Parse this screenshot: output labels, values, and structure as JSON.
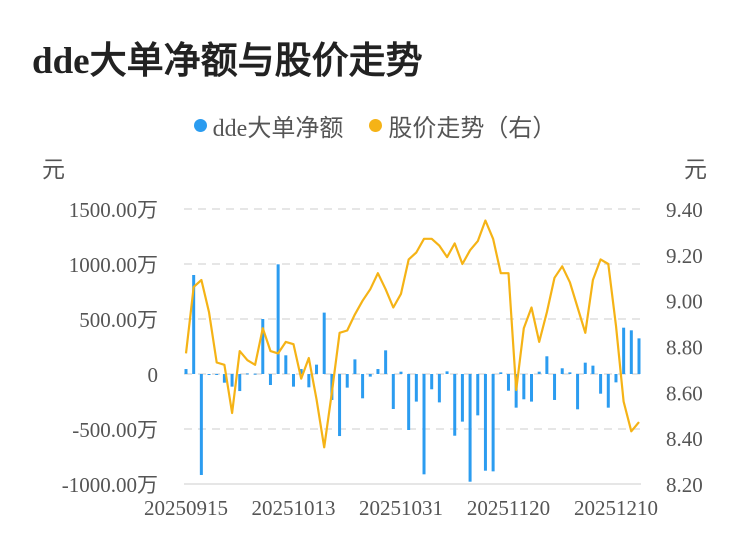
{
  "title": "dde大单净额与股价走势",
  "chart_data": {
    "type": "bar+line",
    "title": "dde大单净额与股价走势",
    "left_unit": "元",
    "right_unit": "元",
    "legend": [
      {
        "name": "dde大单净额",
        "color": "#2b9cf0"
      },
      {
        "name": "股价走势（右）",
        "color": "#f5b316"
      }
    ],
    "legend_placement": "top-center",
    "left_ylim": [
      -1000,
      1500
    ],
    "left_ticks": [
      "1500.00万",
      "1000.00万",
      "500.00万",
      "0",
      "-500.00万",
      "-1000.00万"
    ],
    "left_tick_values": [
      1500,
      1000,
      500,
      0,
      -500,
      -1000
    ],
    "right_ylim": [
      8.2,
      9.4
    ],
    "right_ticks": [
      "9.40",
      "9.20",
      "9.00",
      "8.80",
      "8.60",
      "8.40",
      "8.20"
    ],
    "right_tick_values": [
      9.4,
      9.2,
      9.0,
      8.8,
      8.6,
      8.4,
      8.2
    ],
    "x_tick_labels": [
      "20250915",
      "20251013",
      "20251031",
      "20251120",
      "20251210"
    ],
    "x": [
      "20250915",
      "20250916",
      "20250917",
      "20250918",
      "20250919",
      "20250922",
      "20250923",
      "20250924",
      "20250925",
      "20250926",
      "20250929",
      "20250930",
      "20251009",
      "20251010",
      "20251013",
      "20251014",
      "20251015",
      "20251016",
      "20251017",
      "20251020",
      "20251021",
      "20251022",
      "20251023",
      "20251024",
      "20251027",
      "20251028",
      "20251029",
      "20251030",
      "20251031",
      "20251103",
      "20251104",
      "20251105",
      "20251106",
      "20251107",
      "20251110",
      "20251111",
      "20251112",
      "20251113",
      "20251114",
      "20251117",
      "20251118",
      "20251119",
      "20251120",
      "20251121",
      "20251124",
      "20251125",
      "20251126",
      "20251127",
      "20251128",
      "20251201",
      "20251202",
      "20251203",
      "20251204",
      "20251205",
      "20251208",
      "20251209",
      "20251210",
      "20251211",
      "20251212",
      "20251215"
    ],
    "series": [
      {
        "name": "dde大单净额",
        "unit": "万元",
        "type": "bar",
        "values": [
          45,
          900,
          -918,
          -5,
          -5,
          -79,
          -115,
          -155,
          5,
          3,
          500,
          -100,
          997,
          170,
          -115,
          45,
          -121,
          85,
          558,
          -236,
          -564,
          -124,
          133,
          -221,
          -24,
          45,
          215,
          -318,
          21,
          -509,
          -251,
          -912,
          -139,
          -258,
          24,
          -561,
          -433,
          -979,
          -376,
          -879,
          -885,
          15,
          -152,
          -306,
          -230,
          -251,
          21,
          161,
          -236,
          52,
          15,
          -321,
          103,
          76,
          -179,
          -306,
          -76,
          421,
          397,
          324
        ]
      },
      {
        "name": "股价走势（右）",
        "type": "line",
        "values": [
          8.77,
          9.06,
          9.09,
          8.95,
          8.73,
          8.72,
          8.51,
          8.78,
          8.74,
          8.72,
          8.88,
          8.78,
          8.77,
          8.82,
          8.81,
          8.66,
          8.75,
          8.57,
          8.36,
          8.6,
          8.86,
          8.87,
          8.94,
          9.0,
          9.05,
          9.12,
          9.05,
          8.97,
          9.03,
          9.18,
          9.21,
          9.27,
          9.27,
          9.24,
          9.19,
          9.25,
          9.16,
          9.22,
          9.26,
          9.35,
          9.27,
          9.12,
          9.12,
          8.61,
          8.88,
          8.97,
          8.82,
          8.95,
          9.1,
          9.15,
          9.08,
          8.97,
          8.86,
          9.09,
          9.18,
          9.16,
          8.89,
          8.56,
          8.43,
          8.47
        ]
      }
    ]
  }
}
